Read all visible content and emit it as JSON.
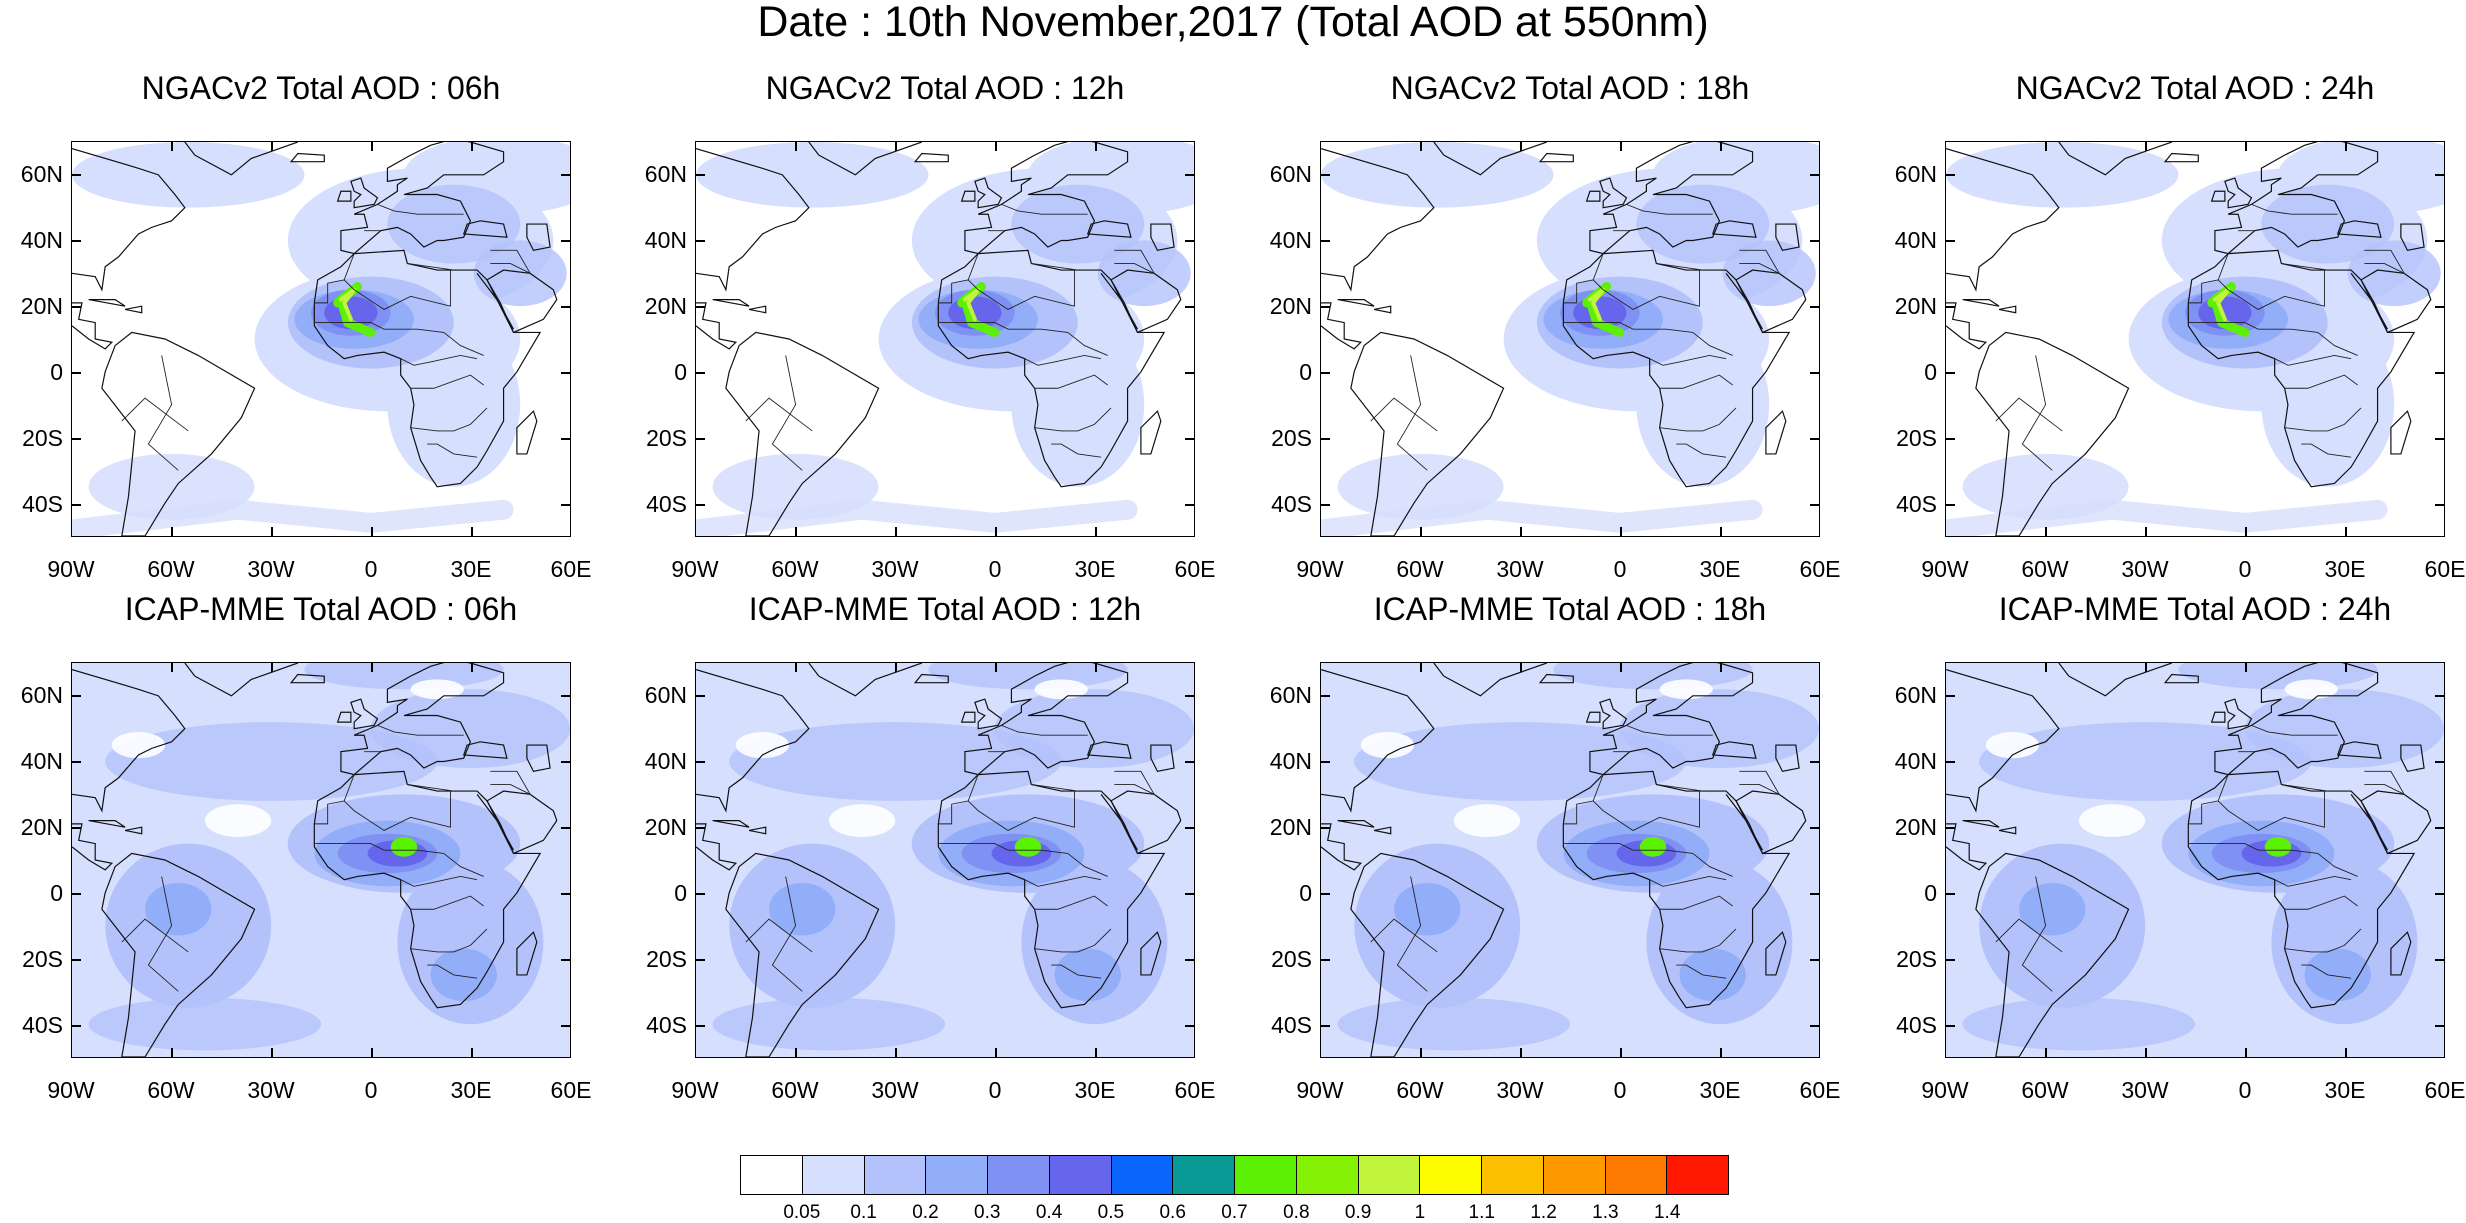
{
  "title": "Date : 10th November,2017 (Total AOD at 550nm)",
  "panels": [
    {
      "title": "NGACv2 Total AOD : 06h"
    },
    {
      "title": "NGACv2 Total AOD : 12h"
    },
    {
      "title": "NGACv2 Total AOD : 18h"
    },
    {
      "title": "NGACv2 Total AOD : 24h"
    },
    {
      "title": "ICAP-MME Total AOD : 06h"
    },
    {
      "title": "ICAP-MME Total AOD : 12h"
    },
    {
      "title": "ICAP-MME Total AOD : 18h"
    },
    {
      "title": "ICAP-MME Total AOD : 24h"
    }
  ],
  "lat_labels": [
    "60N",
    "40N",
    "20N",
    "0",
    "20S",
    "40S"
  ],
  "lon_labels": [
    "90W",
    "60W",
    "30W",
    "0",
    "30E",
    "60E"
  ],
  "map_extent": {
    "lon": [
      -90,
      60
    ],
    "lat": [
      -50,
      70
    ]
  },
  "colorbar": {
    "labels": [
      "0.05",
      "0.1",
      "0.2",
      "0.3",
      "0.4",
      "0.5",
      "0.6",
      "0.7",
      "0.8",
      "0.9",
      "1",
      "1.1",
      "1.2",
      "1.3",
      "1.4"
    ],
    "colors": [
      "#ffffff",
      "#d6dffd",
      "#b3c2fb",
      "#93aef9",
      "#7f91f3",
      "#6566ec",
      "#0a65fb",
      "#0a9a95",
      "#5cf004",
      "#84f004",
      "#c0f53c",
      "#fdfd00",
      "#fdc000",
      "#fe9900",
      "#fe7a00",
      "#ff1800"
    ]
  }
}
